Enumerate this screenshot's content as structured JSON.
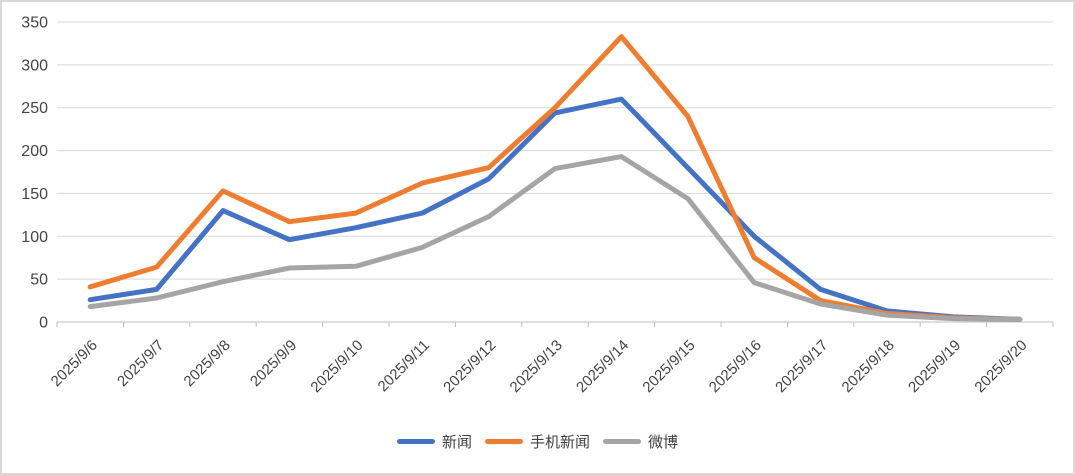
{
  "chart_data": {
    "type": "line",
    "title": "",
    "xlabel": "",
    "ylabel": "",
    "categories": [
      "2025/9/6",
      "2025/9/7",
      "2025/9/8",
      "2025/9/9",
      "2025/9/10",
      "2025/9/11",
      "2025/9/12",
      "2025/9/13",
      "2025/9/14",
      "2025/9/15",
      "2025/9/16",
      "2025/9/17",
      "2025/9/18",
      "2025/9/19",
      "2025/9/20"
    ],
    "series": [
      {
        "name": "新闻",
        "color": "#4472C4",
        "values": [
          26,
          38,
          130,
          96,
          110,
          127,
          167,
          244,
          260,
          180,
          100,
          38,
          13,
          6,
          3
        ]
      },
      {
        "name": "手机新闻",
        "color": "#ED7D31",
        "values": [
          41,
          64,
          153,
          117,
          127,
          162,
          180,
          250,
          333,
          240,
          75,
          25,
          10,
          5,
          3
        ]
      },
      {
        "name": "微博",
        "color": "#A5A5A5",
        "values": [
          18,
          28,
          47,
          63,
          65,
          87,
          123,
          179,
          193,
          144,
          46,
          21,
          8,
          4,
          3
        ]
      }
    ],
    "ylim": [
      0,
      350
    ],
    "ytick_step": 50,
    "ytick_labels": [
      "0",
      "50",
      "100",
      "150",
      "200",
      "250",
      "300",
      "350"
    ],
    "grid": true,
    "legend_position": "bottom",
    "x_label_rotation_deg": 45
  },
  "colors": {
    "gridline": "#D9D9D9",
    "axis_line": "#BFBFBF",
    "axis_text": "#444444",
    "background": "#FFFFFF",
    "border": "#D9D9D9"
  }
}
